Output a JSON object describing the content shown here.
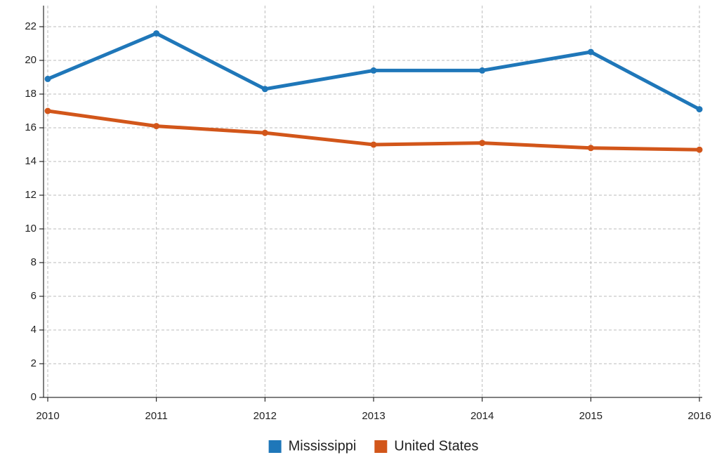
{
  "chart_data": {
    "type": "line",
    "x": [
      2010,
      2011,
      2012,
      2013,
      2014,
      2015,
      2016
    ],
    "xlim": [
      2010,
      2016
    ],
    "xticks": [
      2010,
      2011,
      2012,
      2013,
      2014,
      2015,
      2016
    ],
    "ylim": [
      0,
      23.25
    ],
    "yticks": [
      0,
      2,
      4,
      6,
      8,
      10,
      12,
      14,
      16,
      18,
      20,
      22
    ],
    "grid": true,
    "legend": "bottom",
    "series": [
      {
        "name": "Mississippi",
        "color": "#1f77b9",
        "values": [
          18.9,
          21.6,
          18.3,
          19.4,
          19.4,
          20.5,
          17.1
        ]
      },
      {
        "name": "United States",
        "color": "#d2561a",
        "values": [
          17.0,
          16.1,
          15.7,
          15.0,
          15.1,
          14.8,
          14.7
        ]
      }
    ]
  }
}
